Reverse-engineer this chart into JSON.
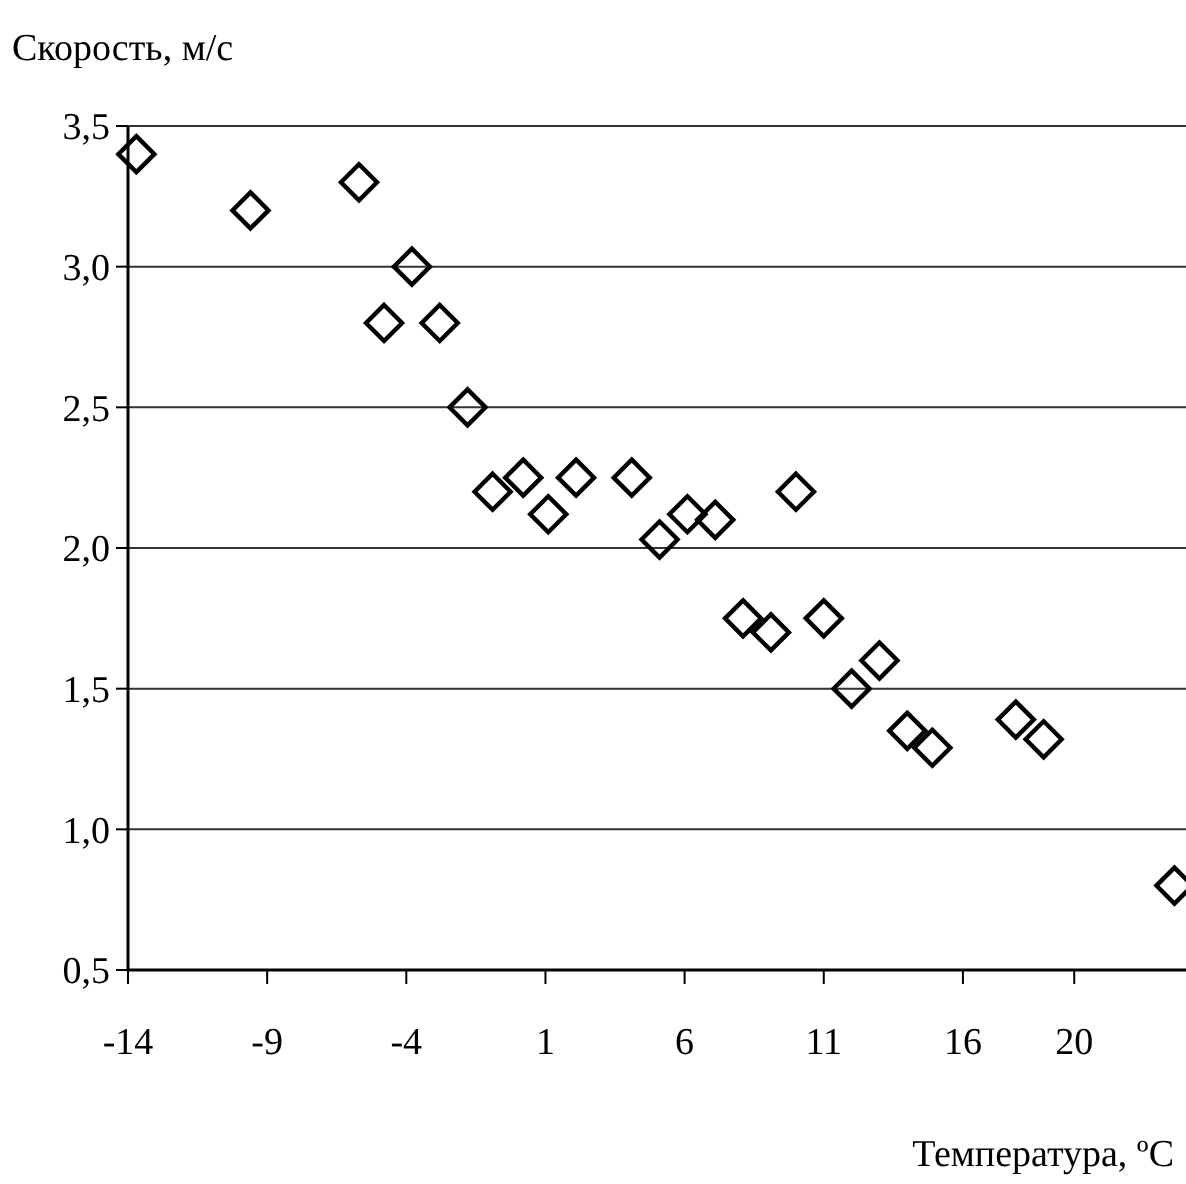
{
  "chart_data": {
    "type": "scatter",
    "ylabel": "Скорость, м/с",
    "xlabel": "Температура, ºC",
    "x": [
      -13.7,
      -9.6,
      -5.7,
      -4.8,
      -3.8,
      -2.8,
      -1.8,
      -0.9,
      0.2,
      1.1,
      2.1,
      4.1,
      5.1,
      6.1,
      7.1,
      8.1,
      9.1,
      10.0,
      11.0,
      12.0,
      13.0,
      14.0,
      14.9,
      17.9,
      18.9,
      23.6
    ],
    "series": [
      {
        "color": "#000000",
        "values": [
          3.4,
          3.2,
          3.3,
          2.8,
          3.0,
          2.8,
          2.5,
          2.2,
          2.25,
          2.12,
          2.25,
          2.25,
          2.03,
          2.12,
          2.1,
          1.75,
          1.7,
          2.2,
          1.75,
          1.5,
          1.6,
          1.35,
          1.29,
          1.39,
          1.32,
          0.8
        ]
      }
    ],
    "xlim": [
      -14,
      23.8
    ],
    "ylim": [
      0.5,
      3.5
    ],
    "xticks": [
      -14,
      -9,
      -4,
      1,
      6,
      11,
      16,
      20
    ],
    "yticks": [
      {
        "value": 0.5,
        "label": "0,5"
      },
      {
        "value": 1,
        "label": "1,0"
      },
      {
        "value": 1.5,
        "label": "1,5"
      },
      {
        "value": 2,
        "label": "2,0"
      },
      {
        "value": 2.5,
        "label": "2,5"
      },
      {
        "value": 3,
        "label": "3,0"
      },
      {
        "value": 3.5,
        "label": "3,5"
      }
    ],
    "grid": "y",
    "marker": "diamond"
  }
}
